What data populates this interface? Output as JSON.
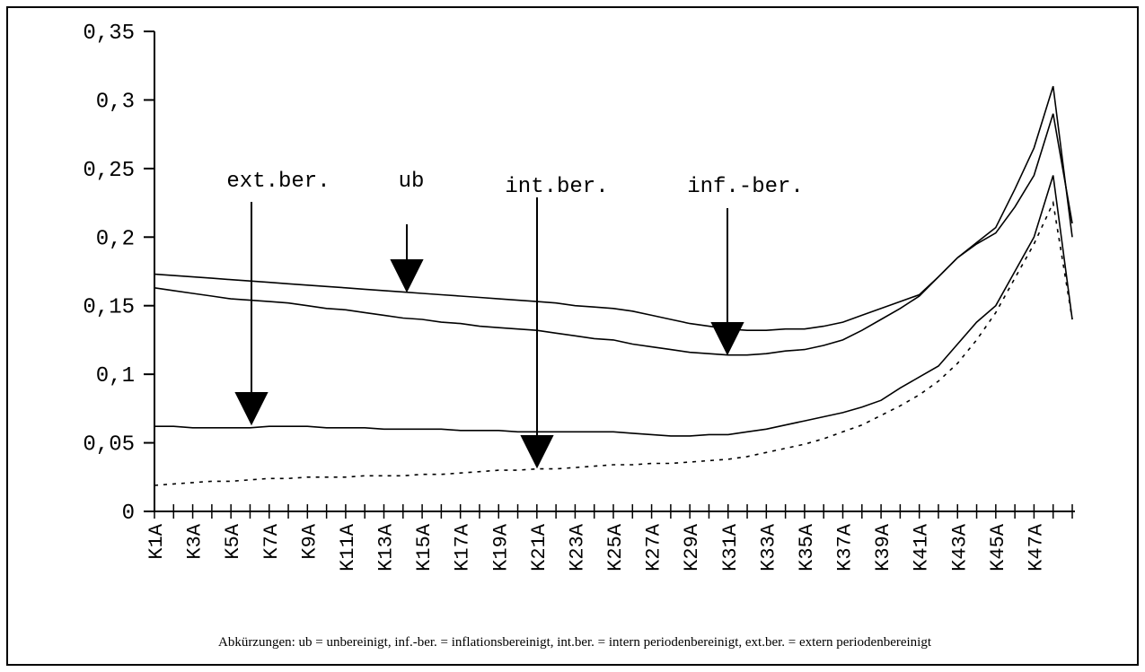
{
  "chart_data": {
    "type": "line",
    "categories": [
      "K1A",
      null,
      "K3A",
      null,
      "K5A",
      null,
      "K7A",
      null,
      "K9A",
      null,
      "K11A",
      null,
      "K13A",
      null,
      "K15A",
      null,
      "K17A",
      null,
      "K19A",
      null,
      "K21A",
      null,
      "K23A",
      null,
      "K25A",
      null,
      "K27A",
      null,
      "K29A",
      null,
      "K31A",
      null,
      "K33A",
      null,
      "K35A",
      null,
      "K37A",
      null,
      "K39A",
      null,
      "K41A",
      null,
      "K43A",
      null,
      "K45A",
      null,
      "K47A",
      null,
      null
    ],
    "series": [
      {
        "name": "ub",
        "color": "#000000",
        "style": "solid",
        "values": [
          0.173,
          0.172,
          0.171,
          0.17,
          0.169,
          0.168,
          0.167,
          0.166,
          0.165,
          0.164,
          0.163,
          0.162,
          0.161,
          0.16,
          0.159,
          0.158,
          0.157,
          0.156,
          0.155,
          0.154,
          0.153,
          0.152,
          0.15,
          0.149,
          0.148,
          0.146,
          0.143,
          0.14,
          0.137,
          0.135,
          0.133,
          0.132,
          0.132,
          0.133,
          0.133,
          0.135,
          0.138,
          0.143,
          0.148,
          0.153,
          0.158,
          0.171,
          0.185,
          0.196,
          0.207,
          0.235,
          0.265,
          0.31,
          0.2
        ]
      },
      {
        "name": "inf.-ber.",
        "color": "#000000",
        "style": "solid",
        "values": [
          0.163,
          0.161,
          0.159,
          0.157,
          0.155,
          0.154,
          0.153,
          0.152,
          0.15,
          0.148,
          0.147,
          0.145,
          0.143,
          0.141,
          0.14,
          0.138,
          0.137,
          0.135,
          0.134,
          0.133,
          0.132,
          0.13,
          0.128,
          0.126,
          0.125,
          0.122,
          0.12,
          0.118,
          0.116,
          0.115,
          0.114,
          0.114,
          0.115,
          0.117,
          0.118,
          0.121,
          0.125,
          0.132,
          0.14,
          0.148,
          0.157,
          0.171,
          0.185,
          0.195,
          0.203,
          0.222,
          0.245,
          0.29,
          0.21
        ]
      },
      {
        "name": "ext.ber.",
        "color": "#000000",
        "style": "solid",
        "values": [
          0.062,
          0.062,
          0.061,
          0.061,
          0.061,
          0.061,
          0.062,
          0.062,
          0.062,
          0.061,
          0.061,
          0.061,
          0.06,
          0.06,
          0.06,
          0.06,
          0.059,
          0.059,
          0.059,
          0.058,
          0.058,
          0.058,
          0.058,
          0.058,
          0.058,
          0.057,
          0.056,
          0.055,
          0.055,
          0.056,
          0.056,
          0.058,
          0.06,
          0.063,
          0.066,
          0.069,
          0.072,
          0.076,
          0.081,
          0.09,
          0.098,
          0.106,
          0.122,
          0.138,
          0.15,
          0.175,
          0.2,
          0.245,
          0.14
        ]
      },
      {
        "name": "int.ber.",
        "color": "#000000",
        "style": "dotted",
        "values": [
          0.019,
          0.02,
          0.021,
          0.022,
          0.022,
          0.023,
          0.024,
          0.024,
          0.025,
          0.025,
          0.025,
          0.026,
          0.026,
          0.026,
          0.027,
          0.027,
          0.028,
          0.029,
          0.03,
          0.03,
          0.031,
          0.031,
          0.032,
          0.033,
          0.034,
          0.034,
          0.035,
          0.035,
          0.036,
          0.037,
          0.038,
          0.04,
          0.043,
          0.046,
          0.049,
          0.053,
          0.058,
          0.063,
          0.07,
          0.077,
          0.085,
          0.095,
          0.108,
          0.125,
          0.145,
          0.17,
          0.195,
          0.225,
          0.14
        ]
      }
    ],
    "ylim": [
      0,
      0.35
    ],
    "yticks": [
      0,
      {
        "value": 0.05,
        "label": "0,05"
      },
      {
        "value": 0.1,
        "label": "0,1"
      },
      {
        "value": 0.15,
        "label": "0,15"
      },
      {
        "value": 0.2,
        "label": "0,2"
      },
      {
        "value": 0.25,
        "label": "0,25"
      },
      {
        "value": 0.3,
        "label": "0,3"
      },
      {
        "value": 0.35,
        "label": "0,35"
      }
    ],
    "annotations": [
      "ext.ber.",
      "ub",
      "int.ber.",
      "inf.-ber."
    ],
    "note": "Abkürzungen: ub = unbereinigt, inf.-ber. = inflationsbereinigt, int.ber. = intern periodenbereinigt, ext.ber. = extern periodenbereinigt"
  }
}
